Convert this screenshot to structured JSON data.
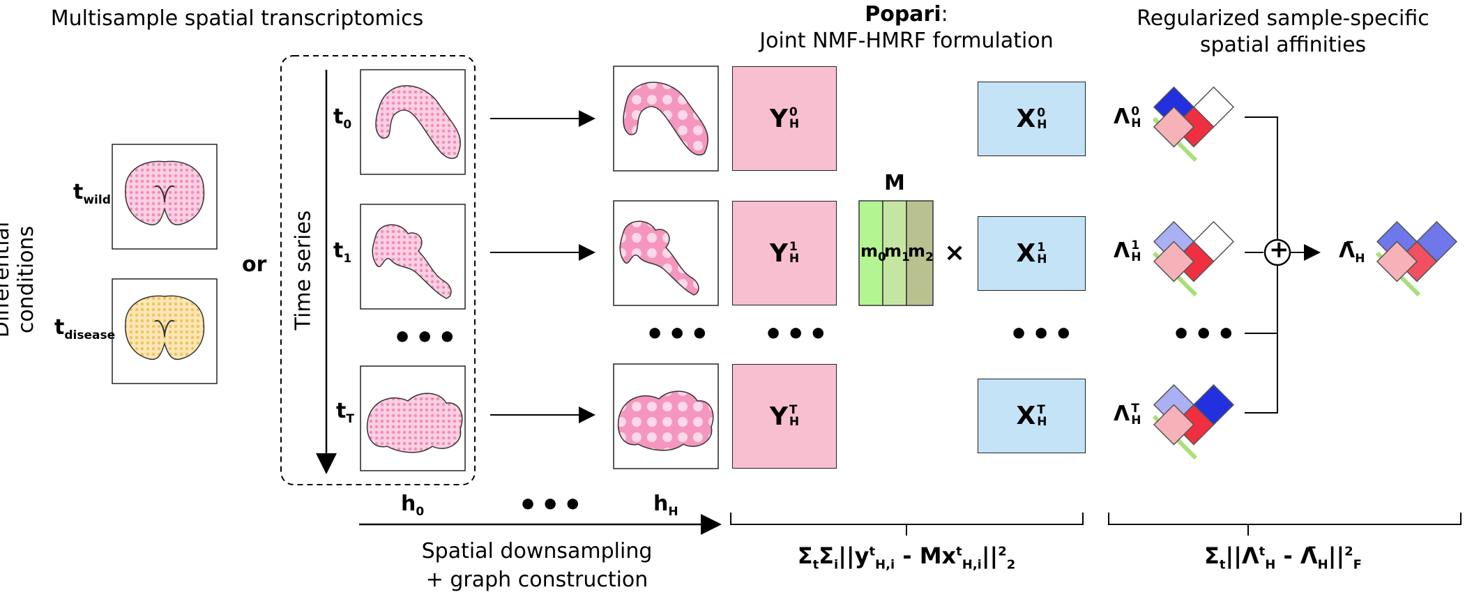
{
  "titles": {
    "left": "Multisample spatial transcriptomics",
    "popari_name": "Popari",
    "popari_colon": ":",
    "popari_sub": "Joint NMF-HMRF formulation",
    "right_line1": "Regularized sample-specific",
    "right_line2": "spatial affinities"
  },
  "left": {
    "vertical_label": "Differential conditions",
    "t_wild": "t",
    "t_wild_sub": "wild",
    "t_disease": "t",
    "t_disease_sub": "disease",
    "or": "or"
  },
  "timeseries": {
    "vertical_label": "Time series",
    "t0": "t",
    "t0_sub": "0",
    "t1": "t",
    "t1_sub": "1",
    "tT": "t",
    "tT_sub": "T",
    "dots": "•••"
  },
  "downsampling": {
    "h0": "h",
    "h0_sub": "0",
    "hH": "h",
    "hH_sub": "H",
    "dots": "•••",
    "caption_line1": "Spatial downsampling",
    "caption_line2": "+ graph construction"
  },
  "matrices": {
    "Y": "Y",
    "X": "X",
    "H": "H",
    "sup0": "0",
    "sup1": "1",
    "supT": "T",
    "M": "M",
    "m0": "m",
    "m1": "m",
    "m2": "m",
    "m0_sub": "0",
    "m1_sub": "1",
    "m2_sub": "2",
    "times": "×",
    "dots": "•••"
  },
  "affinity": {
    "Lambda": "Λ",
    "H": "H",
    "sup0": "0",
    "sup1": "1",
    "supT": "T",
    "plus": "+",
    "bar_lambda": "Λ̄",
    "dots": "•••"
  },
  "formulas": {
    "left": "Σ",
    "right": "Σ"
  },
  "colors": {
    "tissue_pink": "#f7a6c8",
    "tissue_yellow": "#f7d98c",
    "y_box": "#f8bfd0",
    "x_box": "#c4e3f7",
    "m0": "#b3f591",
    "m1": "#c5e6a3",
    "m2": "#b8c18f",
    "blue_strong": "#2230e0",
    "blue_light": "#aab0f3",
    "red_strong": "#f03040",
    "red_light": "#f6b2b8",
    "affinity_underline": "#a8e07a"
  }
}
